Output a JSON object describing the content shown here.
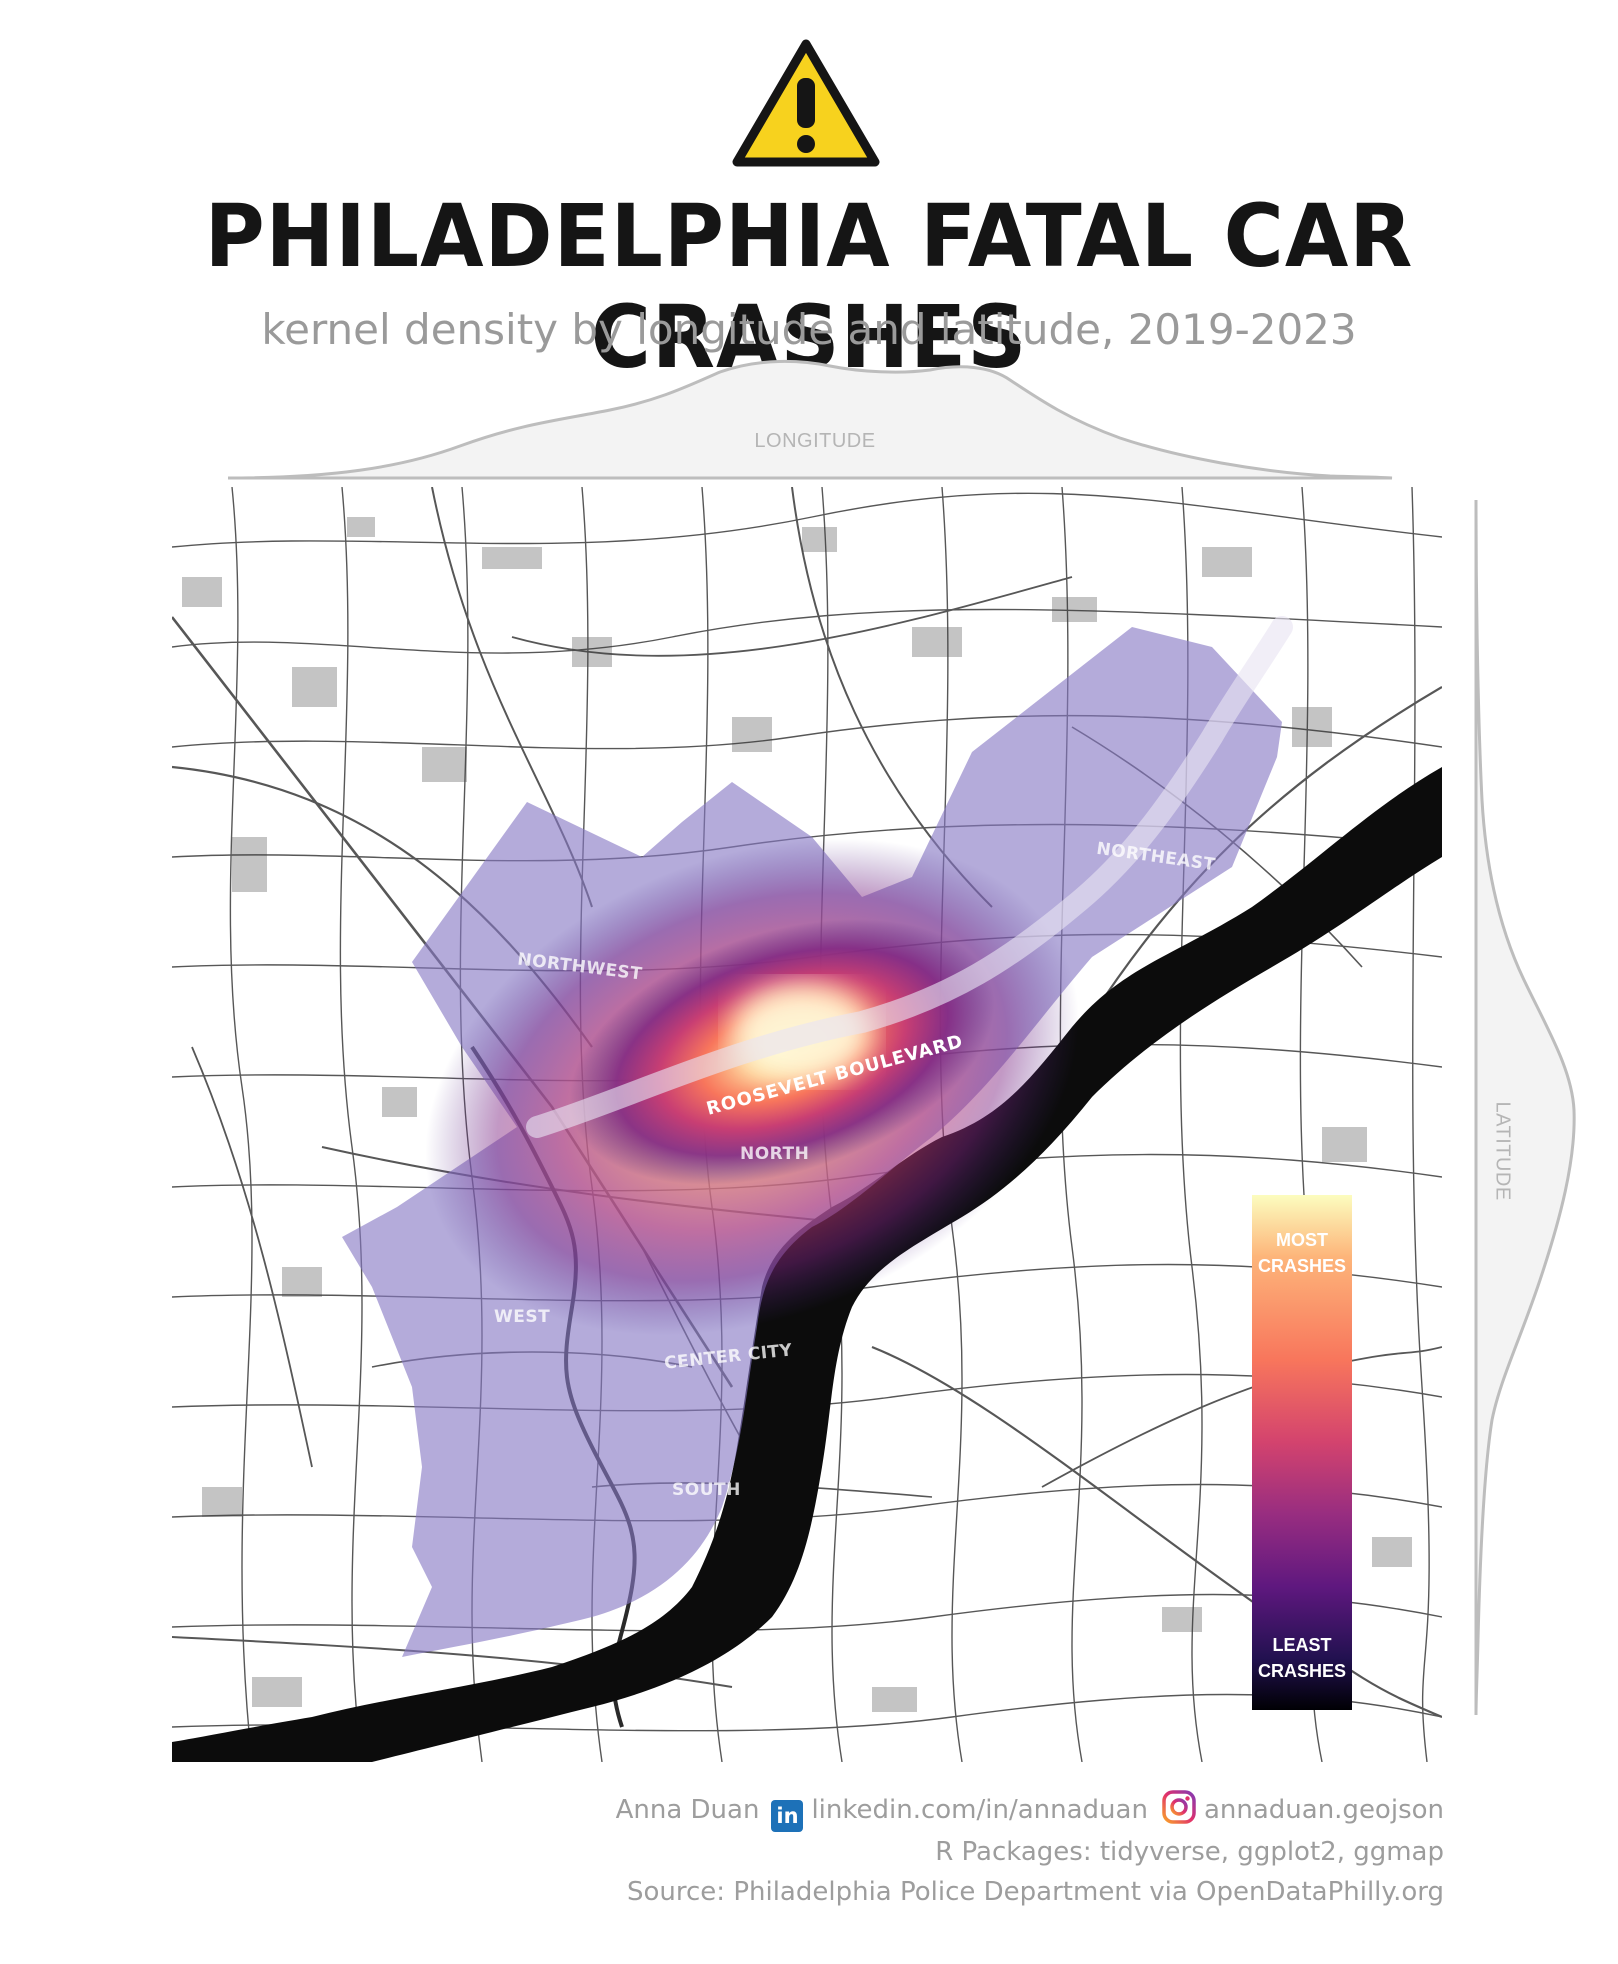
{
  "header": {
    "icon": "warning-triangle-icon",
    "title": "PHILADELPHIA FATAL CAR CRASHES",
    "subtitle": "kernel density by longitude and latitude, 2019-2023"
  },
  "axes": {
    "longitude_label": "LONGITUDE",
    "latitude_label": "LATITUDE"
  },
  "map": {
    "regions": [
      "NORTHWEST",
      "NORTHEAST",
      "NORTH",
      "WEST",
      "CENTER CITY",
      "SOUTH"
    ],
    "highlighted_road": "ROOSEVELT BOULEVARD",
    "palette": "magma"
  },
  "legend": {
    "top_label": "MOST\nCRASHES",
    "bottom_label": "LEAST\nCRASHES",
    "colors": [
      "#fcfdbf",
      "#fdb57a",
      "#f8765c",
      "#d3436e",
      "#982d80",
      "#5f187f",
      "#221150",
      "#000004"
    ]
  },
  "credits": {
    "author": "Anna Duan",
    "linkedin_icon": "linkedin-icon",
    "linkedin": "linkedin.com/in/annaduan",
    "instagram_icon": "instagram-icon",
    "instagram": "annaduan.geojson",
    "packages": "R Packages: tidyverse, ggplot2, ggmap",
    "source": "Source: Philadelphia Police Department via OpenDataPhilly.org"
  }
}
